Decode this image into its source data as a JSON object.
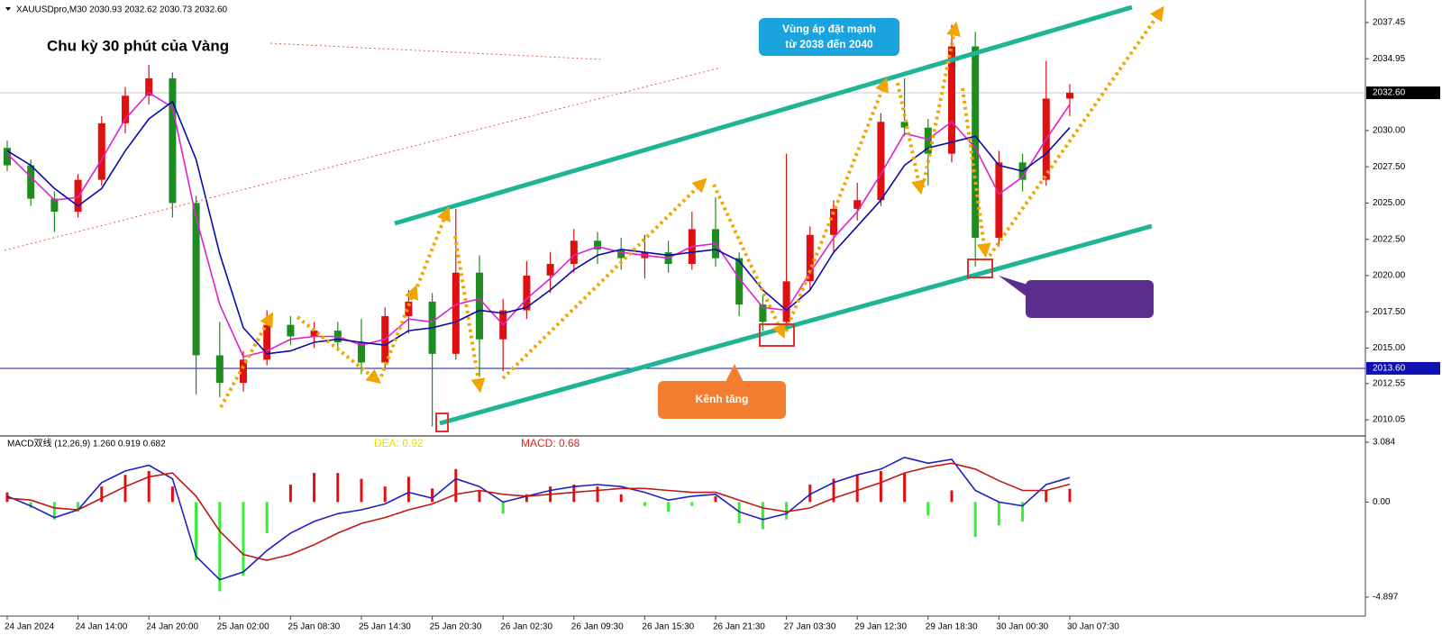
{
  "chart_data": [
    {
      "type": "candlestick",
      "title": "XAUUSDpro,M30  2030.93 2032.62 2030.73 2032.60",
      "annotations": [
        "Chu kỳ 30 phút của Vàng",
        "Vùng áp đặt mạnh",
        "từ 2038 đến 2040",
        "Kênh tăng"
      ],
      "categories": [
        "24 Jan 2024",
        null,
        null,
        "24 Jan 14:00",
        null,
        null,
        "24 Jan 20:00",
        null,
        null,
        "25 Jan 02:00",
        null,
        null,
        "25 Jan 08:30",
        null,
        null,
        "25 Jan 14:30",
        null,
        null,
        "25 Jan 20:30",
        null,
        null,
        "26 Jan 02:30",
        null,
        null,
        "26 Jan 09:30",
        null,
        null,
        "26 Jan 15:30",
        null,
        null,
        "26 Jan 21:30",
        null,
        null,
        "27 Jan 03:30",
        null,
        null,
        "29 Jan 12:30",
        null,
        null,
        "29 Jan 18:30",
        null,
        null,
        "30 Jan 00:30",
        null,
        null,
        "30 Jan 07:30"
      ],
      "open": [
        2028.8,
        2027.6,
        2025.3,
        2024.4,
        2026.6,
        2030.5,
        2032.4,
        2033.6,
        2025.0,
        2014.5,
        2012.6,
        2014.2,
        2016.6,
        2015.8,
        2016.2,
        2015.4,
        2014.0,
        2017.2,
        2018.2,
        2014.6,
        2020.2,
        2015.6,
        2017.6,
        2020.0,
        2020.8,
        2022.4,
        2021.8,
        2021.2,
        2021.6,
        2020.8,
        2023.2,
        2021.2,
        2018.0,
        2016.8,
        2019.6,
        2022.8,
        2024.6,
        2025.2,
        2030.6,
        2030.2,
        2028.4,
        2035.8,
        2022.6,
        2027.8,
        2026.6,
        2032.2
      ],
      "high": [
        2029.3,
        2028.0,
        2025.8,
        2027.0,
        2031.0,
        2033.0,
        2034.6,
        2034.0,
        2025.5,
        2016.8,
        2014.8,
        2017.6,
        2017.2,
        2016.8,
        2016.8,
        2017.0,
        2017.8,
        2019.0,
        2018.8,
        2024.6,
        2021.4,
        2018.4,
        2021.0,
        2021.6,
        2023.2,
        2023.0,
        2022.6,
        2022.8,
        2022.4,
        2024.4,
        2025.4,
        2021.6,
        2018.6,
        2028.4,
        2023.4,
        2025.2,
        2026.4,
        2031.2,
        2033.6,
        2030.8,
        2037.3,
        2036.8,
        2028.6,
        2028.4,
        2034.8,
        2033.2
      ],
      "low": [
        2027.2,
        2024.8,
        2023.0,
        2024.0,
        2026.2,
        2029.8,
        2031.8,
        2024.0,
        2011.8,
        2011.6,
        2012.0,
        2013.8,
        2015.2,
        2015.0,
        2014.8,
        2013.2,
        2013.6,
        2016.0,
        2009.6,
        2014.2,
        2013.0,
        2013.4,
        2017.0,
        2018.8,
        2020.2,
        2020.8,
        2020.4,
        2019.8,
        2020.2,
        2020.4,
        2020.6,
        2017.2,
        2016.2,
        2016.4,
        2019.0,
        2021.6,
        2023.8,
        2024.8,
        2029.6,
        2026.2,
        2027.8,
        2020.6,
        2022.0,
        2025.8,
        2026.2,
        2031.0
      ],
      "close": [
        2027.6,
        2025.3,
        2024.4,
        2026.6,
        2030.5,
        2032.4,
        2033.6,
        2025.0,
        2014.5,
        2012.6,
        2014.2,
        2016.6,
        2015.8,
        2016.2,
        2015.4,
        2014.0,
        2017.2,
        2018.2,
        2014.6,
        2020.2,
        2015.6,
        2017.6,
        2020.0,
        2020.8,
        2022.4,
        2021.8,
        2021.2,
        2021.6,
        2020.8,
        2023.2,
        2021.2,
        2018.0,
        2016.8,
        2019.6,
        2022.8,
        2024.6,
        2025.2,
        2030.6,
        2030.2,
        2028.4,
        2035.8,
        2022.6,
        2027.8,
        2026.6,
        2032.2,
        2032.6
      ],
      "up_color": "#e01010",
      "down_color": "#1e8c1e",
      "series": [
        {
          "color": "#e020d0",
          "values": [
            2028.4,
            2026.8,
            2025.2,
            2025.4,
            2028.0,
            2030.8,
            2032.6,
            2031.6,
            2024.0,
            2018.0,
            2014.4,
            2014.8,
            2015.6,
            2015.8,
            2015.8,
            2015.2,
            2015.6,
            2017.0,
            2016.8,
            2018.0,
            2018.4,
            2016.6,
            2018.4,
            2019.8,
            2021.4,
            2022.0,
            2021.6,
            2021.4,
            2021.2,
            2022.0,
            2022.2,
            2019.8,
            2017.8,
            2017.6,
            2020.2,
            2022.6,
            2024.4,
            2027.0,
            2029.8,
            2029.4,
            2030.6,
            2028.8,
            2025.6,
            2026.8,
            2029.4,
            2031.8
          ]
        },
        {
          "color": "#0a0aa8",
          "values": [
            2028.6,
            2027.6,
            2026.0,
            2024.8,
            2026.0,
            2028.6,
            2030.8,
            2032.0,
            2028.0,
            2021.5,
            2016.4,
            2014.6,
            2014.8,
            2015.4,
            2015.6,
            2015.4,
            2015.2,
            2016.2,
            2016.4,
            2016.8,
            2017.6,
            2017.4,
            2017.8,
            2019.0,
            2020.4,
            2021.4,
            2021.8,
            2021.6,
            2021.4,
            2021.6,
            2021.8,
            2021.0,
            2019.0,
            2017.6,
            2019.0,
            2021.6,
            2023.4,
            2025.2,
            2027.6,
            2028.8,
            2029.2,
            2029.6,
            2027.6,
            2027.2,
            2028.4,
            2030.2
          ]
        }
      ],
      "price_lines": [
        {
          "value": 2032.6,
          "label": "2032.60",
          "color": "#c8c8c8",
          "label_color": "#000000"
        },
        {
          "value": 2013.6,
          "label": "2013.60",
          "color": "#1010b0",
          "label_color": "#1010b0"
        }
      ],
      "ylim": [
        2009.0,
        2039.0
      ],
      "yticks": [
        2037.45,
        2034.95,
        {
          "value": 2030.0,
          "label": "2030.00"
        },
        {
          "value": 2027.5,
          "label": "2027.50"
        },
        {
          "value": 2025.0,
          "label": "2025.00"
        },
        {
          "value": 2022.5,
          "label": "2022.50"
        },
        {
          "value": 2020.0,
          "label": "2020.00"
        },
        {
          "value": 2017.5,
          "label": "2017.50"
        },
        {
          "value": 2015.0,
          "label": "2015.00"
        },
        2012.55,
        2010.05
      ],
      "grid": false
    },
    {
      "type": "macd",
      "title": "MACD双线 (12,26,9) 1.260 0.919 0.682",
      "annotations": [
        "DEA:  0.92",
        "MACD:  0.68"
      ],
      "values": [
        0.5,
        -0.3,
        -0.9,
        -0.5,
        0.8,
        1.4,
        1.6,
        0.8,
        -3.0,
        -4.6,
        -3.8,
        -1.6,
        0.9,
        1.5,
        1.5,
        1.2,
        0.8,
        1.3,
        0.7,
        1.7,
        0.6,
        -0.6,
        0.4,
        0.8,
        0.9,
        0.8,
        0.4,
        -0.2,
        -0.5,
        -0.2,
        0.3,
        -1.1,
        -1.4,
        -0.9,
        0.9,
        1.2,
        1.4,
        1.6,
        1.5,
        -0.7,
        0.6,
        -1.8,
        -1.2,
        -1.0,
        0.6,
        0.68
      ],
      "up_color": "#e01010",
      "down_color": "#33ee33",
      "series": [
        {
          "color": "#2020c0",
          "values": [
            0.3,
            -0.2,
            -0.8,
            -0.4,
            1.0,
            1.6,
            1.9,
            1.2,
            -2.8,
            -4.0,
            -3.6,
            -2.5,
            -1.6,
            -1.0,
            -0.6,
            -0.4,
            -0.1,
            0.5,
            0.2,
            1.2,
            0.8,
            0.0,
            0.3,
            0.6,
            0.8,
            0.9,
            0.8,
            0.5,
            0.1,
            0.3,
            0.4,
            -0.5,
            -0.9,
            -0.6,
            0.4,
            1.0,
            1.4,
            1.7,
            2.3,
            2.0,
            2.2,
            0.6,
            0.0,
            -0.2,
            0.9,
            1.26
          ]
        },
        {
          "color": "#c01818",
          "values": [
            0.2,
            0.1,
            -0.3,
            -0.4,
            0.2,
            0.8,
            1.3,
            1.5,
            0.3,
            -1.5,
            -2.7,
            -3.0,
            -2.7,
            -2.2,
            -1.6,
            -1.1,
            -0.8,
            -0.4,
            -0.1,
            0.4,
            0.6,
            0.4,
            0.3,
            0.4,
            0.5,
            0.6,
            0.7,
            0.7,
            0.6,
            0.5,
            0.5,
            0.1,
            -0.3,
            -0.5,
            -0.3,
            0.2,
            0.6,
            1.0,
            1.5,
            1.8,
            2.0,
            1.7,
            1.1,
            0.6,
            0.6,
            0.92
          ]
        }
      ],
      "ylim": [
        -5.83,
        3.36
      ],
      "yticks": [
        3.084,
        {
          "value": 0,
          "label": "0.00"
        },
        -4.897
      ],
      "grid": false
    }
  ]
}
